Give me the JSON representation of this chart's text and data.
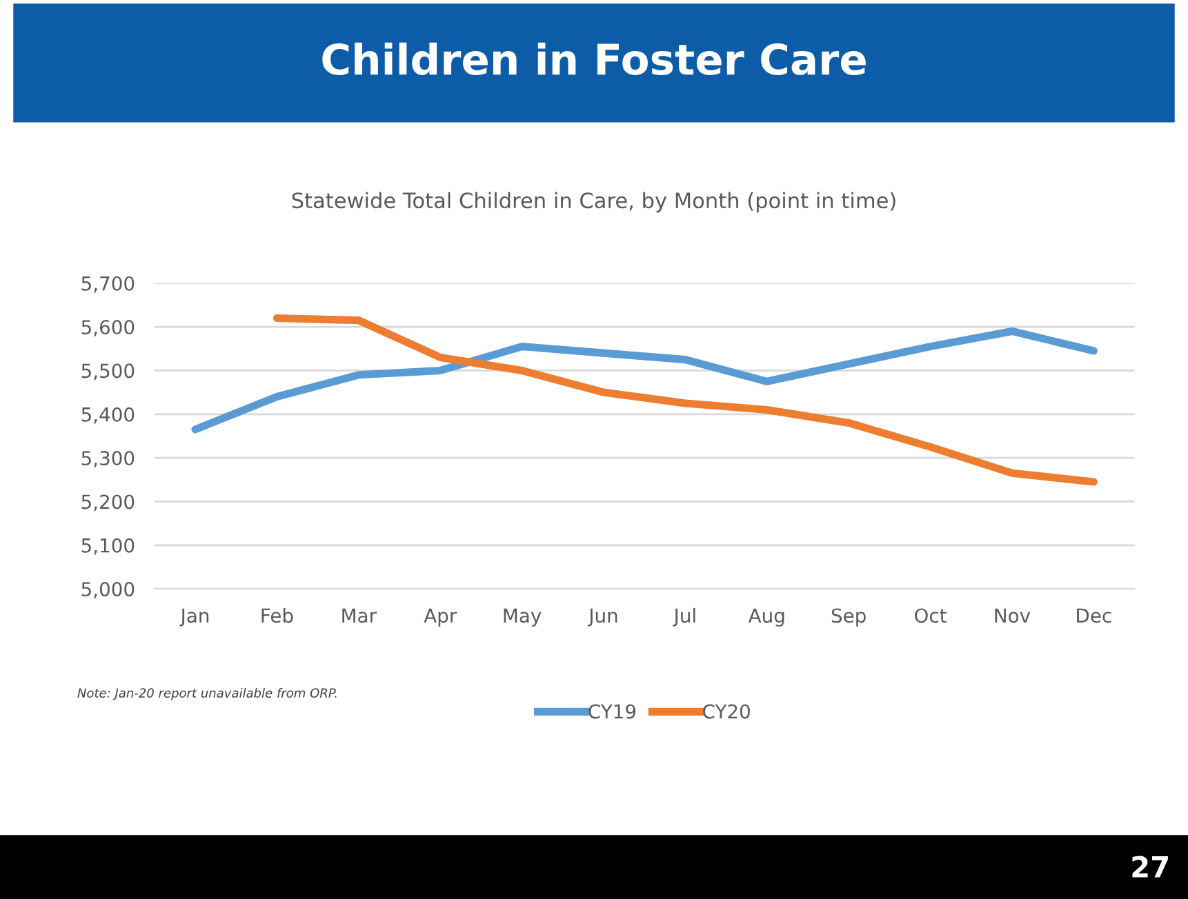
{
  "chart_data": {
    "type": "line",
    "title": "Children in Foster Care",
    "subtitle": "Statewide Total Children in Care, by Month (point in time)",
    "categories": [
      "Jan",
      "Feb",
      "Mar",
      "Apr",
      "May",
      "Jun",
      "Jul",
      "Aug",
      "Sep",
      "Oct",
      "Nov",
      "Dec"
    ],
    "series": [
      {
        "name": "CY19",
        "color": "#5b9bd5",
        "values": [
          5365,
          5440,
          5490,
          5500,
          5555,
          5540,
          5525,
          5475,
          5515,
          5555,
          5590,
          5545
        ]
      },
      {
        "name": "CY20",
        "color": "#ed7d31",
        "values": [
          null,
          5620,
          5615,
          5530,
          5500,
          5450,
          5425,
          5410,
          5380,
          5325,
          5265,
          5245
        ]
      }
    ],
    "ylim": [
      5000,
      5700
    ],
    "yticks": [
      {
        "value": 5000,
        "label": "5,000"
      },
      {
        "value": 5100,
        "label": "5,100"
      },
      {
        "value": 5200,
        "label": "5,200"
      },
      {
        "value": 5300,
        "label": "5,300"
      },
      {
        "value": 5400,
        "label": "5,400"
      },
      {
        "value": 5500,
        "label": "5,500"
      },
      {
        "value": 5600,
        "label": "5,600"
      },
      {
        "value": 5700,
        "label": "5,700"
      }
    ],
    "grid": "y",
    "legend": "bottom",
    "marker": "none",
    "line_style": "solid",
    "annotations": [
      "Note: Jan-20 report unavailable from ORP.",
      "27"
    ]
  }
}
